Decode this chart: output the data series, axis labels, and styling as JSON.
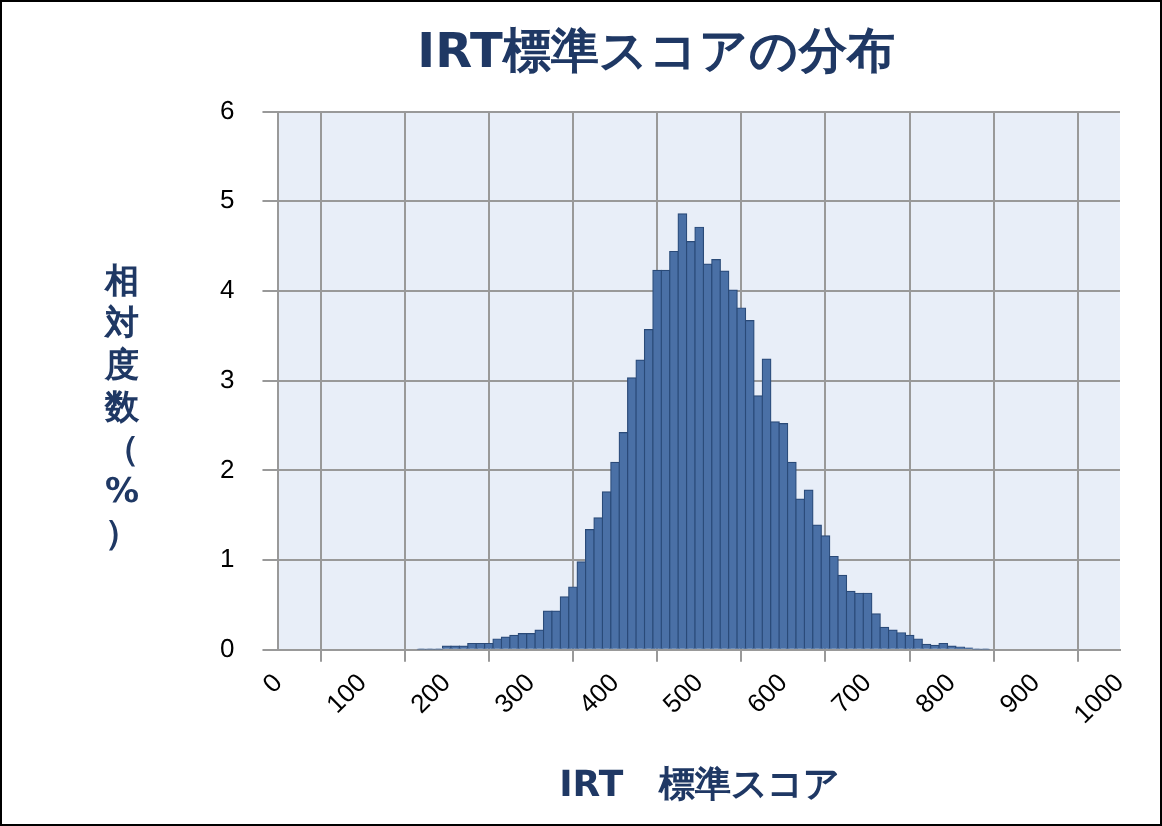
{
  "chart_data": {
    "type": "histogram",
    "title": "IRT標準スコアの分布",
    "xlabel": "IRT　標準スコア",
    "ylabel": "相対度数（%）",
    "bins": [
      165,
      175,
      185,
      195,
      205,
      215,
      225,
      235,
      245,
      255,
      265,
      275,
      285,
      295,
      305,
      315,
      325,
      335,
      345,
      355,
      365,
      375,
      385,
      395,
      405,
      415,
      425,
      435,
      445,
      455,
      465,
      475,
      485,
      495,
      505,
      515,
      525,
      535,
      545,
      555,
      565,
      575,
      585,
      595,
      605,
      615,
      625,
      635,
      645,
      655,
      665,
      675,
      685,
      695,
      705,
      715,
      725,
      735,
      745,
      755,
      765,
      775,
      785,
      795,
      805,
      815,
      825,
      835,
      845
    ],
    "values": [
      0.01,
      0.01,
      0.01,
      0.04,
      0.04,
      0.04,
      0.07,
      0.07,
      0.07,
      0.12,
      0.14,
      0.16,
      0.18,
      0.18,
      0.22,
      0.43,
      0.43,
      0.59,
      0.7,
      0.98,
      1.34,
      1.47,
      1.76,
      2.09,
      2.42,
      3.03,
      3.23,
      3.57,
      4.23,
      4.23,
      4.44,
      4.86,
      4.55,
      4.71,
      4.3,
      4.35,
      4.22,
      4.01,
      3.81,
      3.67,
      2.83,
      3.24,
      2.54,
      2.52,
      2.09,
      1.68,
      1.78,
      1.39,
      1.27,
      1.04,
      0.83,
      0.65,
      0.63,
      0.63,
      0.4,
      0.25,
      0.22,
      0.19,
      0.16,
      0.12,
      0.06,
      0.05,
      0.07,
      0.04,
      0.03,
      0.02,
      0.01,
      0.01
    ],
    "color": "#4a70a6",
    "xlim": [
      0,
      1000
    ],
    "xticks": [
      0,
      100,
      200,
      300,
      400,
      500,
      600,
      700,
      800,
      900,
      1000
    ],
    "ylim": [
      0,
      6
    ],
    "yticks": [
      0,
      1,
      2,
      3,
      4,
      5,
      6
    ],
    "grid": true,
    "legend": false
  }
}
